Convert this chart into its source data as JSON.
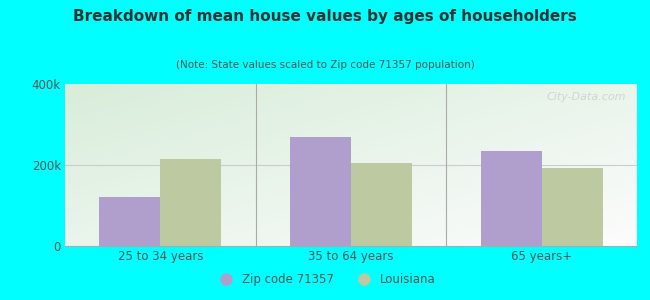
{
  "title": "Breakdown of mean house values by ages of householders",
  "subtitle": "(Note: State values scaled to Zip code 71357 population)",
  "categories": [
    "25 to 34 years",
    "35 to 64 years",
    "65 years+"
  ],
  "zip_values": [
    120000,
    270000,
    235000
  ],
  "la_values": [
    215000,
    205000,
    192000
  ],
  "ylim": [
    0,
    400000
  ],
  "yticks": [
    0,
    200000,
    400000
  ],
  "ytick_labels": [
    "0",
    "200k",
    "400k"
  ],
  "zip_color": "#b09fcc",
  "la_color": "#bdc9a0",
  "background_color": "#00ffff",
  "plot_bg_color_green": "#d8edda",
  "plot_bg_color_white": "#f8faf8",
  "legend_zip": "Zip code 71357",
  "legend_la": "Louisiana",
  "bar_width": 0.32,
  "watermark": "City-Data.com",
  "title_color": "#333333",
  "subtitle_color": "#555555",
  "tick_color": "#555555",
  "separator_color": "#aaaaaa",
  "gridline_color": "#cccccc"
}
